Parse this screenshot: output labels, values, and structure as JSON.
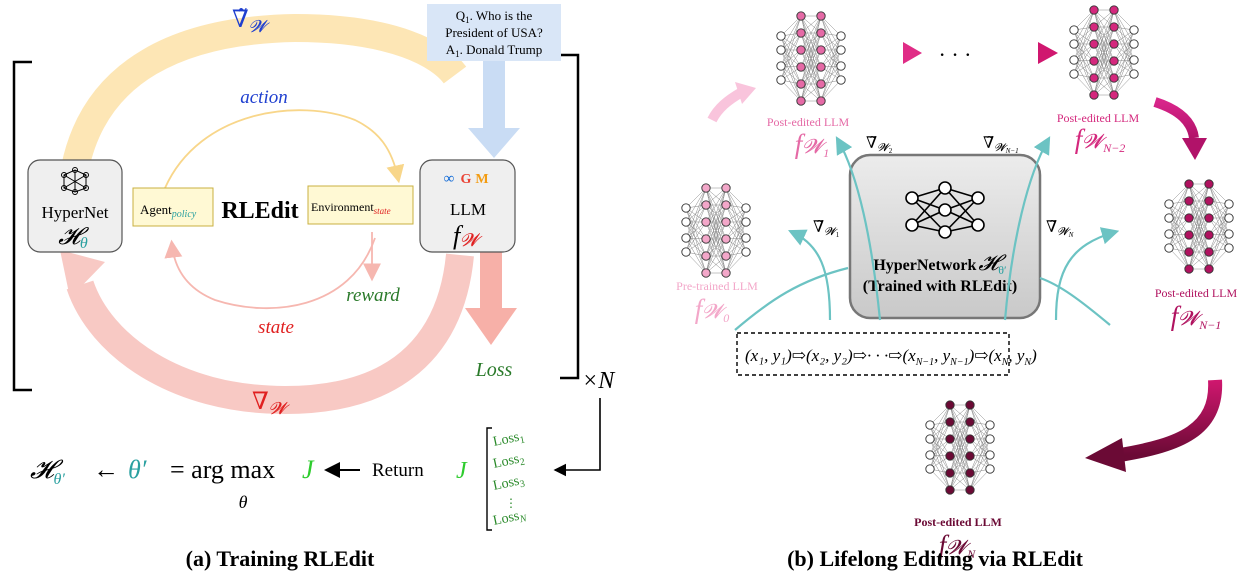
{
  "left": {
    "caption": "(a) Training RLEdit",
    "grad_tilde_top": "∇̃",
    "grad_sub": "𝓦",
    "grad_bottom": "∇",
    "query_q": "Q",
    "query_q_sub": "1",
    "query_q_text": ". Who is the",
    "query_q_line2": "President of USA?",
    "query_a": "A",
    "query_a_sub": "1",
    "query_a_text": ". Donald Trump",
    "action_label": "action",
    "reward_label": "reward",
    "state_label": "state",
    "loss_label": "Loss",
    "hypernet_label": "HyperNet",
    "hypernet_symbol": "𝓗",
    "hypernet_sub": "θ",
    "agent_label": "Agent",
    "agent_sub": "policy",
    "center_title": "RLEdit",
    "env_label": "Environment",
    "env_sub": "state",
    "llm_label": "LLM",
    "llm_symbol": "f",
    "llm_sub": "𝓦",
    "times_n": "×N",
    "formula_lhs": "𝓗",
    "formula_lhs_sub": "θ′",
    "formula_arrow": "←",
    "formula_theta": "θ′",
    "formula_eq": "= arg max",
    "formula_under": "θ",
    "formula_j": "J",
    "formula_return": "Return",
    "formula_j2": "J",
    "losses": [
      "Loss",
      "Loss",
      "Loss",
      "⋮",
      "Loss"
    ],
    "loss_subs": [
      "1",
      "2",
      "3",
      "",
      "N"
    ],
    "llm_logos": [
      "∞",
      "G",
      "M"
    ]
  },
  "right": {
    "caption": "(b) Lifelong Editing via RLEdit",
    "hypernetwork_label": "HyperNetwork",
    "hypernetwork_symbol": "𝓗",
    "hypernetwork_sub": "θ′",
    "trained_label": "(Trained with RLEdit)",
    "sequence": "(x₁, y₁)⇨(x₂, y₂)⇨· · ·⇨(x_{N−1}, y_{N−1})⇨(x_N, y_N)",
    "seq_items": [
      "(x₁, y₁)",
      "(x₂, y₂)",
      "· · ·",
      "(x",
      "(x"
    ],
    "seq_n1": "N−1",
    "seq_n": "N",
    "dots": "· · ·",
    "pretrained_label": "Pre-trained LLM",
    "pretrained_sub": "0",
    "post1_label": "Post-edited LLM",
    "post1_sub": "1",
    "postn2_label": "Post-edited LLM",
    "postn2_sub": "N−2",
    "postn1_label": "Post-edited LLM",
    "postn1_sub": "N−1",
    "postn_label": "Post-edited LLM",
    "postn_sub": "N",
    "f_symbol": "f",
    "w_symbol": "𝓦",
    "grad_w1": "1",
    "grad_w2": "2",
    "grad_wn1": "N−1",
    "grad_wn": "N",
    "grad_symbol": "∇̃",
    "colors": {
      "pretrained": "#f3a7c9",
      "post1": "#e56aa6",
      "postn2": "#d4287d",
      "postn1": "#b0125f",
      "postn": "#6b0a35",
      "teal": "#6cc3c3"
    }
  }
}
